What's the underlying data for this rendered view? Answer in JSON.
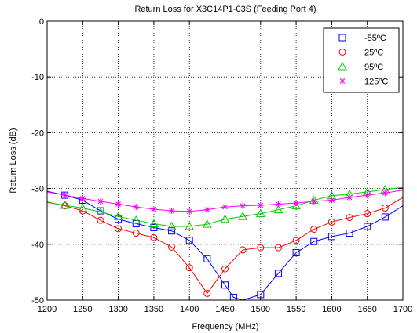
{
  "chart_data": {
    "type": "line",
    "title": "Return Loss for X3C14P1-03S (Feeding Port 4)",
    "xlabel": "Frequency (MHz)",
    "ylabel": "Return Loss (dB)",
    "xlim": [
      1200,
      1700
    ],
    "ylim": [
      -50,
      0
    ],
    "xticks": [
      1200,
      1250,
      1300,
      1350,
      1400,
      1450,
      1500,
      1550,
      1600,
      1650,
      1700
    ],
    "yticks": [
      0,
      -10,
      -20,
      -30,
      -40,
      -50
    ],
    "grid": true,
    "grid_style": "dotted",
    "legend_position": "top-right",
    "series": [
      {
        "name": "-55ºC",
        "color": "#0000ff",
        "marker": "square",
        "x": [
          1200,
          1225,
          1250,
          1275,
          1300,
          1325,
          1350,
          1375,
          1400,
          1425,
          1450,
          1462,
          1475,
          1500,
          1525,
          1550,
          1575,
          1600,
          1625,
          1650,
          1675,
          1700
        ],
        "y": [
          -30.5,
          -31.2,
          -32.1,
          -34.0,
          -35.5,
          -36.3,
          -37.0,
          -37.6,
          -39.3,
          -42.6,
          -47.3,
          -49.5,
          -50.0,
          -49.0,
          -45.2,
          -41.5,
          -39.5,
          -38.6,
          -38.0,
          -36.8,
          -35.1,
          -33.1
        ]
      },
      {
        "name": "25ºC",
        "color": "#ff0000",
        "marker": "circle",
        "x": [
          1200,
          1225,
          1250,
          1275,
          1300,
          1325,
          1350,
          1375,
          1400,
          1425,
          1450,
          1475,
          1500,
          1525,
          1550,
          1575,
          1600,
          1625,
          1650,
          1675,
          1700
        ],
        "y": [
          -32.4,
          -33.1,
          -34.0,
          -35.7,
          -37.2,
          -38.0,
          -38.8,
          -40.5,
          -44.2,
          -48.8,
          -44.4,
          -41.0,
          -40.6,
          -40.6,
          -39.3,
          -37.3,
          -36.0,
          -35.2,
          -34.5,
          -33.5,
          -31.6
        ]
      },
      {
        "name": "95ºC",
        "color": "#00cc00",
        "marker": "triangle",
        "x": [
          1200,
          1225,
          1250,
          1275,
          1300,
          1325,
          1350,
          1375,
          1400,
          1425,
          1450,
          1475,
          1500,
          1525,
          1550,
          1575,
          1600,
          1625,
          1650,
          1675,
          1700
        ],
        "y": [
          -32.5,
          -33.0,
          -33.5,
          -34.2,
          -35.0,
          -35.7,
          -36.3,
          -36.8,
          -36.8,
          -36.4,
          -35.5,
          -35.0,
          -34.5,
          -33.8,
          -33.1,
          -32.1,
          -31.3,
          -31.0,
          -30.6,
          -30.2,
          -29.8
        ]
      },
      {
        "name": "125ºC",
        "color": "#ff00ff",
        "marker": "star",
        "x": [
          1200,
          1225,
          1250,
          1275,
          1300,
          1325,
          1350,
          1375,
          1400,
          1425,
          1450,
          1475,
          1500,
          1525,
          1550,
          1575,
          1600,
          1625,
          1650,
          1675,
          1700
        ],
        "y": [
          -30.6,
          -31.2,
          -31.8,
          -32.3,
          -32.8,
          -33.3,
          -33.7,
          -34.0,
          -34.1,
          -33.8,
          -33.3,
          -33.1,
          -33.0,
          -32.8,
          -32.6,
          -32.3,
          -32.1,
          -31.6,
          -31.2,
          -30.8,
          -30.3
        ]
      }
    ]
  }
}
